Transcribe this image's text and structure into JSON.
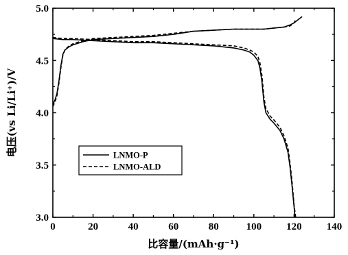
{
  "chart_data": {
    "type": "line",
    "xlim": [
      0,
      140
    ],
    "ylim": [
      3.0,
      5.0
    ],
    "x_ticks": [
      0,
      20,
      40,
      60,
      80,
      100,
      120,
      140
    ],
    "y_ticks": [
      3.0,
      3.5,
      4.0,
      4.5,
      5.0
    ],
    "x_tick_labels": [
      "0",
      "20",
      "40",
      "60",
      "80",
      "100",
      "120",
      "140"
    ],
    "y_tick_labels": [
      "3.0",
      "3.5",
      "4.0",
      "4.5",
      "5.0"
    ],
    "xlabel": "比容量/(mAh·g⁻¹)",
    "ylabel": "电压(vs Li/Li⁺)/V",
    "grid": false,
    "legend_position": "lower-left",
    "series": [
      {
        "name": "LNMO-P",
        "style": "solid",
        "color": "#000000",
        "charge": {
          "x": [
            0,
            1,
            2,
            3,
            4,
            5,
            6,
            8,
            10,
            15,
            20,
            30,
            40,
            50,
            60,
            70,
            80,
            90,
            100,
            105,
            110,
            115,
            118,
            120,
            122,
            124
          ],
          "y": [
            4.08,
            4.12,
            4.18,
            4.3,
            4.45,
            4.56,
            4.6,
            4.63,
            4.65,
            4.68,
            4.7,
            4.71,
            4.72,
            4.73,
            4.75,
            4.78,
            4.79,
            4.8,
            4.8,
            4.8,
            4.81,
            4.82,
            4.84,
            4.86,
            4.89,
            4.92
          ]
        },
        "discharge": {
          "x": [
            0,
            5,
            10,
            20,
            30,
            40,
            50,
            60,
            70,
            80,
            90,
            95,
            98,
            100,
            102,
            103,
            104,
            105,
            106,
            108,
            110,
            113,
            115,
            117,
            118,
            119,
            120,
            120.5
          ],
          "y": [
            4.71,
            4.7,
            4.7,
            4.69,
            4.68,
            4.67,
            4.67,
            4.66,
            4.65,
            4.64,
            4.62,
            4.6,
            4.58,
            4.55,
            4.5,
            4.43,
            4.3,
            4.1,
            4.0,
            3.94,
            3.9,
            3.83,
            3.75,
            3.62,
            3.48,
            3.3,
            3.1,
            3.0
          ]
        }
      },
      {
        "name": "LNMO-ALD",
        "style": "dashed",
        "color": "#000000",
        "charge": {
          "x": [
            0,
            1,
            2,
            3,
            4,
            5,
            6,
            8,
            10,
            15,
            20,
            30,
            40,
            50,
            60,
            70,
            80,
            90,
            100,
            105,
            110,
            115,
            118,
            120,
            121
          ],
          "y": [
            4.06,
            4.1,
            4.16,
            4.28,
            4.43,
            4.55,
            4.6,
            4.64,
            4.66,
            4.69,
            4.71,
            4.72,
            4.73,
            4.74,
            4.76,
            4.78,
            4.79,
            4.8,
            4.8,
            4.8,
            4.81,
            4.82,
            4.83,
            4.86,
            4.9
          ]
        },
        "discharge": {
          "x": [
            0,
            5,
            10,
            20,
            30,
            40,
            50,
            60,
            70,
            80,
            90,
            95,
            98,
            100,
            102,
            103,
            104,
            105,
            106,
            108,
            110,
            113,
            115,
            117,
            118,
            119,
            120,
            120.8
          ],
          "y": [
            4.72,
            4.71,
            4.71,
            4.7,
            4.69,
            4.68,
            4.68,
            4.67,
            4.66,
            4.65,
            4.64,
            4.62,
            4.6,
            4.58,
            4.54,
            4.48,
            4.36,
            4.15,
            4.04,
            3.97,
            3.93,
            3.86,
            3.78,
            3.66,
            3.52,
            3.34,
            3.12,
            3.0
          ]
        }
      }
    ]
  }
}
